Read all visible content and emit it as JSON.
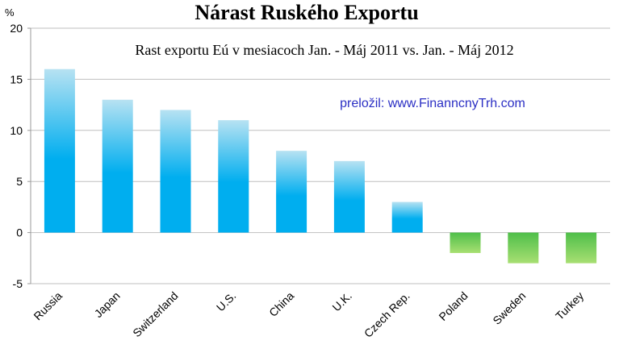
{
  "colors": {
    "positive_top": "#b7e2f2",
    "positive_bottom": "#00aeef",
    "negative_top": "#4fbf4a",
    "negative_bottom": "#a8df72",
    "gridline": "#bfbfbf",
    "credit_text": "#2b2fc4"
  },
  "chart_data": {
    "type": "bar",
    "title": "Nárast Ruského Exportu",
    "subtitle": "Rast exportu Eú  v mesiacoch Jan. - Máj 2011 vs. Jan. - Máj 2012",
    "annotation": "preložil: www.FinanncnyTrh.com",
    "ylabel": "%",
    "ylim": [
      -5,
      20
    ],
    "yticks": [
      -5,
      0,
      5,
      10,
      15,
      20
    ],
    "grid": true,
    "legend": "none",
    "categories": [
      "Russia",
      "Japan",
      "Switzerland",
      "U.S.",
      "China",
      "U.K.",
      "Czech Rep.",
      "Poland",
      "Sweden",
      "Turkey"
    ],
    "values": [
      16,
      13,
      12,
      11,
      8,
      7,
      3,
      -2,
      -3,
      -3
    ]
  }
}
